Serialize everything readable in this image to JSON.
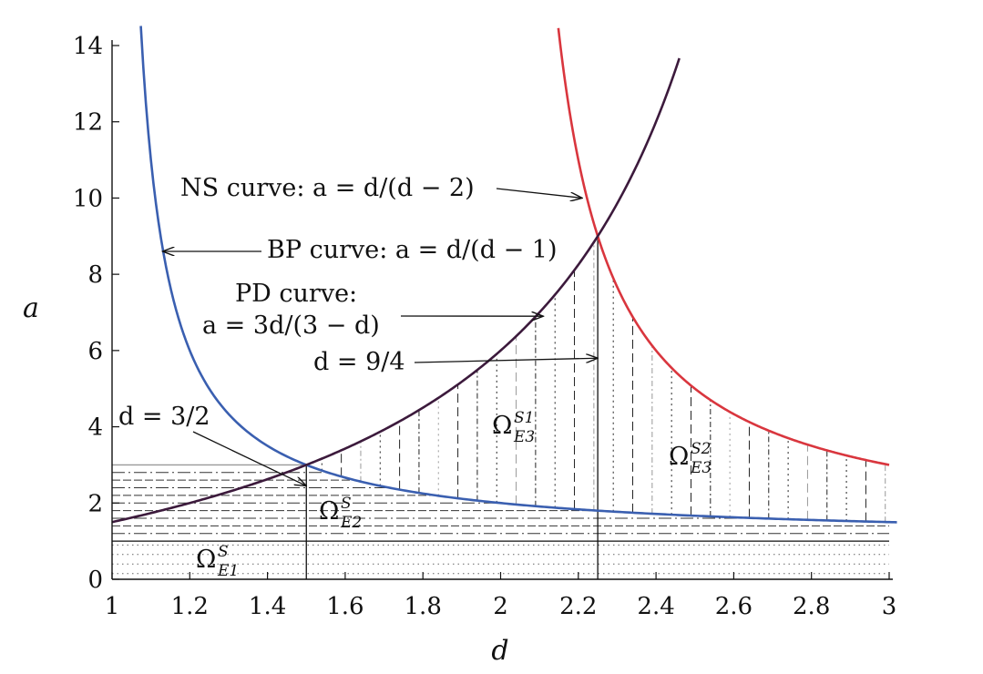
{
  "chart_data": {
    "type": "line",
    "title": "",
    "xlabel": "d",
    "ylabel": "a",
    "xlim": [
      1,
      3
    ],
    "ylim": [
      0,
      14
    ],
    "x_ticks": [
      1,
      1.2,
      1.4,
      1.6,
      1.8,
      2,
      2.2,
      2.4,
      2.6,
      2.8,
      3
    ],
    "x_tick_labels": [
      "1",
      "1.2",
      "1.4",
      "1.6",
      "1.8",
      "2",
      "2.2",
      "2.4",
      "2.6",
      "2.8",
      "3"
    ],
    "y_ticks": [
      0,
      2,
      4,
      6,
      8,
      10,
      12,
      14
    ],
    "y_tick_labels": [
      "0",
      "2",
      "4",
      "6",
      "8",
      "10",
      "12",
      "14"
    ],
    "grid": false,
    "series": [
      {
        "name": "NS curve",
        "formula": "a = d/(d - 2)",
        "color": "#d9363e",
        "x": [
          2.14,
          2.18,
          2.2,
          2.25,
          2.3,
          2.4,
          2.5,
          2.6,
          2.7,
          2.8,
          2.9,
          3.0
        ],
        "y": [
          15.29,
          12.11,
          11.0,
          9.0,
          7.67,
          6.0,
          5.0,
          4.33,
          3.86,
          3.5,
          3.22,
          3.0
        ]
      },
      {
        "name": "BP curve",
        "formula": "a = d/(d - 1)",
        "color": "#3a5fb0",
        "x": [
          1.074,
          1.1,
          1.15,
          1.2,
          1.3,
          1.4,
          1.5,
          1.75,
          2.0,
          2.25,
          2.5,
          2.75,
          3.0
        ],
        "y": [
          14.5,
          11.0,
          7.67,
          6.0,
          4.33,
          3.5,
          3.0,
          2.33,
          2.0,
          1.8,
          1.67,
          1.57,
          1.5
        ]
      },
      {
        "name": "PD curve",
        "formula": "a = 3d/(3 - d)",
        "color": "#3c1a3c",
        "x": [
          1.0,
          1.2,
          1.4,
          1.5,
          1.6,
          1.8,
          2.0,
          2.2,
          2.25,
          2.3,
          2.4,
          2.45
        ],
        "y": [
          1.5,
          2.0,
          2.63,
          3.0,
          3.43,
          4.5,
          6.0,
          8.25,
          9.0,
          9.86,
          12.0,
          13.36
        ]
      }
    ],
    "reference_lines": [
      {
        "orientation": "vertical",
        "x": 1.5
      },
      {
        "orientation": "vertical",
        "x": 2.25
      },
      {
        "orientation": "horizontal",
        "y": 1
      },
      {
        "orientation": "horizontal",
        "y": 3
      }
    ],
    "annotations": [
      {
        "id": "ns",
        "text": "NS curve: a = d/(d − 2)",
        "arrow_to": [
          2.21,
          10.0
        ]
      },
      {
        "id": "bp",
        "text": "BP curve: a = d/(d − 1)",
        "arrow_to": [
          1.13,
          8.6
        ]
      },
      {
        "id": "pd_label",
        "text": "PD curve:"
      },
      {
        "id": "pd",
        "text": "a = 3d/(3 − d)",
        "arrow_to": [
          2.11,
          6.9
        ]
      },
      {
        "id": "d94",
        "text": "d = 9/4",
        "arrow_to": [
          2.25,
          5.8
        ]
      },
      {
        "id": "d32",
        "text": "d = 3/2",
        "arrow_to": [
          1.5,
          2.45
        ]
      }
    ],
    "regions": [
      {
        "id": "E1",
        "base": "Ω",
        "sup": "S",
        "sub": "E1",
        "pattern": "dotted"
      },
      {
        "id": "E2",
        "base": "Ω",
        "sup": "S",
        "sub": "E2",
        "pattern": "dash-dot horizontal"
      },
      {
        "id": "E3S1",
        "base": "Ω",
        "sup": "S1",
        "sub": "E3",
        "pattern": "vertical dashed"
      },
      {
        "id": "E3S2",
        "base": "Ω",
        "sup": "S2",
        "sub": "E3",
        "pattern": "vertical dash-dot"
      }
    ]
  }
}
